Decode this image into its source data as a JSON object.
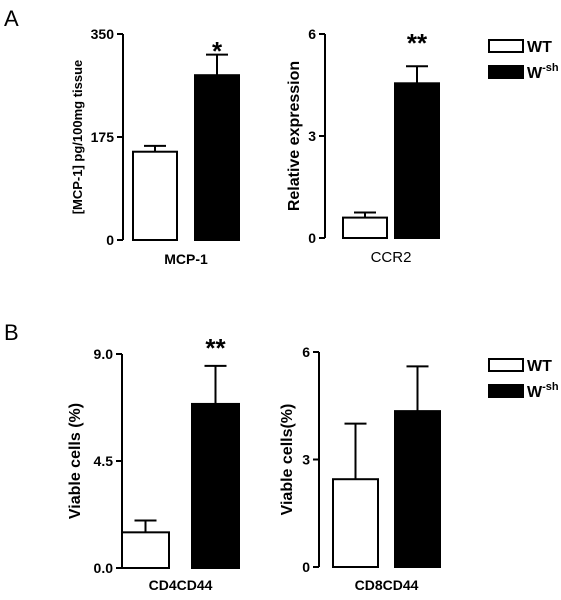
{
  "panel_labels": [
    "A",
    "B"
  ],
  "legend": {
    "entries": [
      {
        "label": "WT",
        "fill": "#ffffff"
      },
      {
        "label": "W",
        "sup": "-sh",
        "fill": "#000000"
      }
    ]
  },
  "chart_data": [
    {
      "type": "bar",
      "panel": "A",
      "categories": [
        "WT",
        "W-sh"
      ],
      "values": [
        150,
        280
      ],
      "errors": [
        10,
        35
      ],
      "ylim": [
        0,
        350
      ],
      "yticks": [
        "0",
        "175",
        "350"
      ],
      "ylabel": "[MCP-1] pg/100mg tissue",
      "xlabel": "MCP-1",
      "significance": [
        {
          "index": 1,
          "text": "*"
        }
      ]
    },
    {
      "type": "bar",
      "panel": "A",
      "categories": [
        "WT",
        "W-sh"
      ],
      "values": [
        0.6,
        4.55
      ],
      "errors": [
        0.15,
        0.5
      ],
      "ylim": [
        0,
        6
      ],
      "yticks": [
        "0",
        "3",
        "6"
      ],
      "ylabel": "Relative expression",
      "xlabel": "CCR2",
      "significance": [
        {
          "index": 1,
          "text": "**"
        }
      ]
    },
    {
      "type": "bar",
      "panel": "B",
      "categories": [
        "WT",
        "W-sh"
      ],
      "values": [
        1.5,
        6.9
      ],
      "errors": [
        0.5,
        1.6
      ],
      "ylim": [
        0,
        9
      ],
      "yticks": [
        "0.0",
        "4.5",
        "9.0"
      ],
      "ylabel": "Viable cells (%)",
      "xlabel": "CD4CD44",
      "significance": [
        {
          "index": 1,
          "text": "**"
        }
      ]
    },
    {
      "type": "bar",
      "panel": "B",
      "categories": [
        "WT",
        "W-sh"
      ],
      "values": [
        2.45,
        4.35
      ],
      "errors": [
        1.55,
        1.25
      ],
      "ylim": [
        0,
        6
      ],
      "yticks": [
        "0",
        "3",
        "6"
      ],
      "ylabel": "Viable cells(%)",
      "xlabel": "CD8CD44",
      "significance": []
    }
  ]
}
